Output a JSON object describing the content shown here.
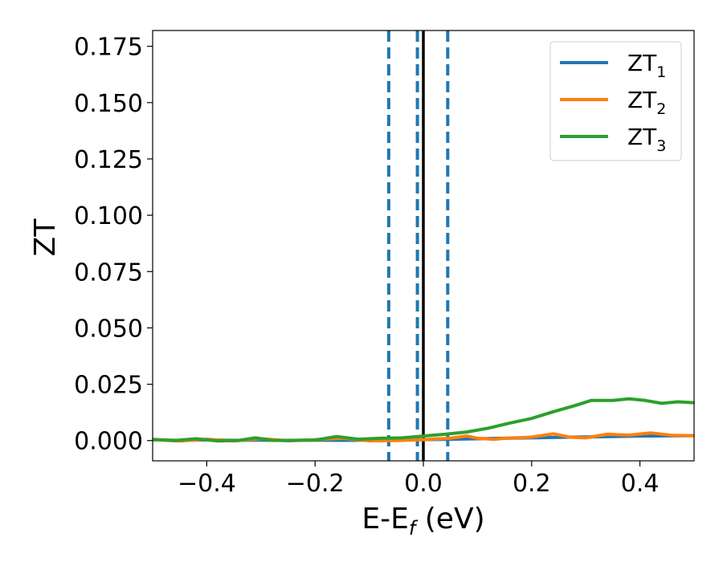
{
  "chart_data": {
    "type": "line",
    "xlabel": "E-E",
    "xlabel_sub": "f",
    "xlabel_unit": "(eV)",
    "ylabel": "ZT",
    "xlim": [
      -0.5,
      0.5
    ],
    "ylim": [
      -0.009,
      0.182
    ],
    "xticks": [
      -0.4,
      -0.2,
      0.0,
      0.2,
      0.4
    ],
    "xtick_labels": [
      "−0.4",
      "−0.2",
      "0.0",
      "0.2",
      "0.4"
    ],
    "yticks": [
      0.0,
      0.025,
      0.05,
      0.075,
      0.1,
      0.125,
      0.15,
      0.175
    ],
    "ytick_labels": [
      "0.000",
      "0.025",
      "0.050",
      "0.075",
      "0.100",
      "0.125",
      "0.150",
      "0.175"
    ],
    "grid": false,
    "legend_position": "top-right",
    "vertical_lines": [
      {
        "x": -0.064,
        "style": "dashed",
        "color": "#1f77b4"
      },
      {
        "x": -0.011,
        "style": "dashed",
        "color": "#1f77b4"
      },
      {
        "x": 0.0,
        "style": "solid",
        "color": "#000000"
      },
      {
        "x": 0.045,
        "style": "dashed",
        "color": "#1f77b4"
      }
    ],
    "series": [
      {
        "name": "ZT",
        "name_sub": "1",
        "color": "#1f77b4",
        "x": [
          -0.5,
          -0.45,
          -0.4,
          -0.35,
          -0.3,
          -0.25,
          -0.2,
          -0.15,
          -0.1,
          -0.05,
          0.0,
          0.05,
          0.1,
          0.15,
          0.2,
          0.25,
          0.3,
          0.35,
          0.4,
          0.45,
          0.5
        ],
        "y": [
          0.0003,
          0.0001,
          0.0003,
          0.0001,
          0.0002,
          0.0001,
          0.0002,
          0.0001,
          0.0002,
          0.0003,
          0.0004,
          0.0006,
          0.0008,
          0.001,
          0.0012,
          0.0014,
          0.0016,
          0.0018,
          0.002,
          0.0021,
          0.0022
        ]
      },
      {
        "name": "ZT",
        "name_sub": "2",
        "color": "#ff7f0e",
        "x": [
          -0.5,
          -0.45,
          -0.4,
          -0.35,
          -0.3,
          -0.25,
          -0.2,
          -0.15,
          -0.1,
          -0.05,
          0.0,
          0.05,
          0.08,
          0.1,
          0.13,
          0.15,
          0.2,
          0.24,
          0.27,
          0.3,
          0.34,
          0.38,
          0.42,
          0.46,
          0.5
        ],
        "y": [
          0.0004,
          -0.0002,
          0.0006,
          -0.0002,
          0.0008,
          -0.0001,
          0.0004,
          0.001,
          -0.0001,
          0.0,
          0.0004,
          0.001,
          0.002,
          0.001,
          0.0005,
          0.001,
          0.0015,
          0.003,
          0.0015,
          0.0012,
          0.0028,
          0.0024,
          0.0034,
          0.0023,
          0.0022
        ]
      },
      {
        "name": "ZT",
        "name_sub": "3",
        "color": "#2ca02c",
        "x": [
          -0.5,
          -0.46,
          -0.42,
          -0.38,
          -0.34,
          -0.31,
          -0.28,
          -0.25,
          -0.2,
          -0.16,
          -0.12,
          -0.08,
          -0.04,
          0.0,
          0.04,
          0.08,
          0.12,
          0.16,
          0.2,
          0.24,
          0.28,
          0.31,
          0.35,
          0.38,
          0.41,
          0.44,
          0.47,
          0.5
        ],
        "y": [
          0.0005,
          0.0,
          0.0008,
          -0.0002,
          0.0001,
          0.0012,
          0.0001,
          0.0,
          0.0002,
          0.0018,
          0.0006,
          0.001,
          0.0012,
          0.002,
          0.0028,
          0.0038,
          0.0055,
          0.0078,
          0.0098,
          0.0128,
          0.0155,
          0.0178,
          0.0178,
          0.0185,
          0.0178,
          0.0165,
          0.0172,
          0.0168
        ]
      }
    ]
  }
}
